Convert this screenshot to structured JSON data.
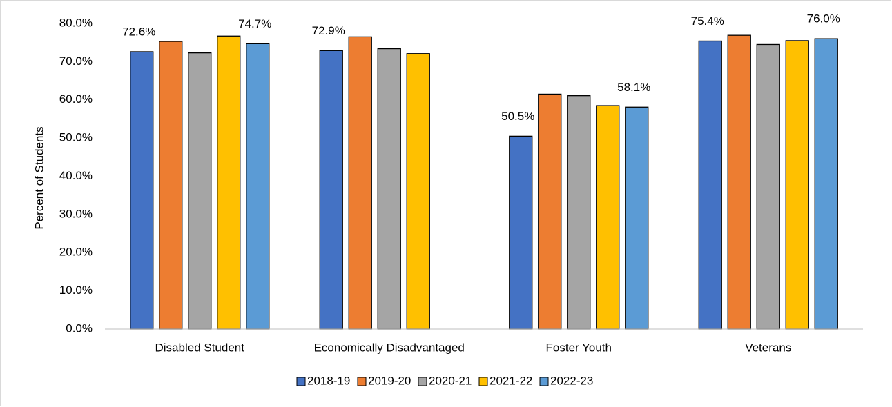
{
  "chart_data": {
    "type": "bar",
    "y_label": "Percent of Students",
    "categories": [
      "Disabled Student",
      "Economically Disadvantaged",
      "Foster Youth",
      "Veterans"
    ],
    "series": [
      {
        "name": "2018-19",
        "color": "#4472c4",
        "values": [
          72.6,
          72.9,
          50.5,
          75.4
        ],
        "value_labels": [
          "72.6%",
          "72.9%",
          "50.5%",
          "75.4%"
        ]
      },
      {
        "name": "2019-20",
        "color": "#ed7d31",
        "values": [
          75.3,
          76.5,
          61.5,
          76.9
        ]
      },
      {
        "name": "2020-21",
        "color": "#a5a5a5",
        "values": [
          72.3,
          73.4,
          61.1,
          74.5
        ]
      },
      {
        "name": "2021-22",
        "color": "#ffc000",
        "values": [
          76.7,
          72.1,
          58.5,
          75.5
        ]
      },
      {
        "name": "2022-23",
        "color": "#5b9bd5",
        "values": [
          74.7,
          null,
          58.1,
          76.0
        ],
        "value_labels": [
          "74.7%",
          null,
          "58.1%",
          "76.0%"
        ]
      }
    ],
    "ylim": [
      0,
      80
    ],
    "yticks": [
      {
        "value": 0,
        "label": "0.0%"
      },
      {
        "value": 10,
        "label": "10.0%"
      },
      {
        "value": 20,
        "label": "20.0%"
      },
      {
        "value": 30,
        "label": "30.0%"
      },
      {
        "value": 40,
        "label": "40.0%"
      },
      {
        "value": 50,
        "label": "50.0%"
      },
      {
        "value": 60,
        "label": "60.0%"
      },
      {
        "value": 70,
        "label": "70.0%"
      },
      {
        "value": 80,
        "label": "80.0%"
      }
    ],
    "grid": false,
    "legend": "bottom"
  }
}
